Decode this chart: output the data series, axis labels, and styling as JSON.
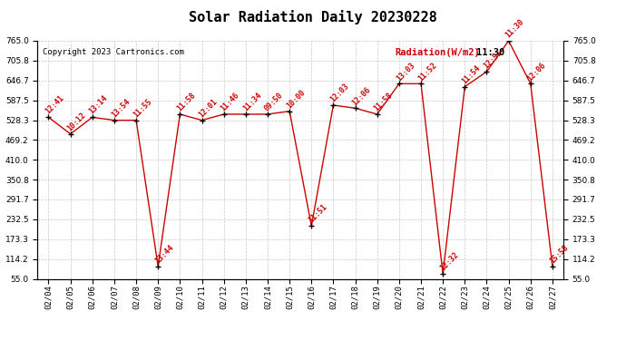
{
  "title": "Solar Radiation Daily 20230228",
  "copyright": "Copyright 2023 Cartronics.com",
  "legend_label": "Radiation(W/m2)",
  "legend_time": "11:30",
  "dates": [
    "02/04",
    "02/05",
    "02/06",
    "02/07",
    "02/08",
    "02/09",
    "02/10",
    "02/11",
    "02/12",
    "02/13",
    "02/14",
    "02/15",
    "02/16",
    "02/17",
    "02/18",
    "02/19",
    "02/20",
    "02/21",
    "02/22",
    "02/23",
    "02/24",
    "02/25",
    "02/26",
    "02/27"
  ],
  "values": [
    537,
    487,
    537,
    528,
    528,
    92,
    546,
    528,
    546,
    546,
    546,
    555,
    213,
    573,
    564,
    546,
    637,
    637,
    70,
    628,
    673,
    765,
    637,
    92
  ],
  "labels": [
    "12:41",
    "10:12",
    "13:14",
    "13:54",
    "11:55",
    "13:44",
    "11:58",
    "12:01",
    "11:46",
    "11:34",
    "09:50",
    "10:00",
    "11:51",
    "12:03",
    "12:06",
    "11:58",
    "13:03",
    "11:52",
    "12:32",
    "11:54",
    "12:51",
    "11:30",
    "12:06",
    "15:58"
  ],
  "ylim": [
    55.0,
    765.0
  ],
  "yticks": [
    55.0,
    114.2,
    173.3,
    232.5,
    291.7,
    350.8,
    410.0,
    469.2,
    528.3,
    587.5,
    646.7,
    705.8,
    765.0
  ],
  "line_color": "#cc0000",
  "marker_color": "#000000",
  "bg_color": "#ffffff",
  "grid_color": "#bbbbbb",
  "title_fontsize": 11,
  "label_fontsize": 6,
  "axis_fontsize": 6.5,
  "copyright_fontsize": 6.5
}
